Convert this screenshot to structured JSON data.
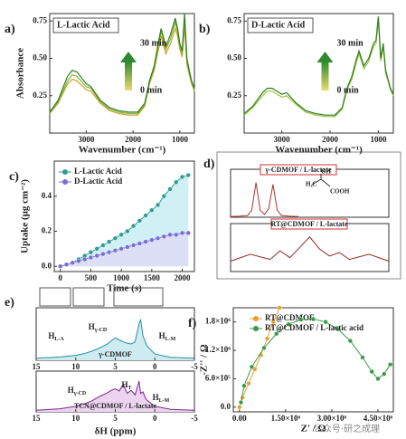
{
  "chart_data": [
    {
      "type": "line",
      "panel": "a)",
      "title": "L-Lactic Acid",
      "xlabel": "Wavenumber (cm⁻¹)",
      "ylabel": "Absorbance",
      "xlim": [
        3780,
        690
      ],
      "ylim": [
        0,
        0.8
      ],
      "xticks": [
        3000,
        2000,
        1000
      ],
      "yticks": [
        0.25,
        {
          "value": 0.5,
          "label": "0.50"
        },
        0.75
      ],
      "annotations": [
        "30 min",
        "0 min"
      ],
      "x": [
        3780,
        3600,
        3400,
        3300,
        3200,
        3000,
        2900,
        2700,
        2500,
        2300,
        2100,
        1900,
        1750,
        1650,
        1550,
        1450,
        1400,
        1300,
        1200,
        1100,
        1050,
        1000,
        950,
        900,
        850,
        800,
        750,
        690
      ],
      "series": [
        {
          "color": "#c9a227",
          "values": [
            0.13,
            0.2,
            0.33,
            0.36,
            0.35,
            0.29,
            0.28,
            0.2,
            0.15,
            0.13,
            0.12,
            0.12,
            0.18,
            0.33,
            0.42,
            0.57,
            0.65,
            0.53,
            0.6,
            0.7,
            0.65,
            0.56,
            0.51,
            0.72,
            0.46,
            0.39,
            0.33,
            0.28
          ]
        },
        {
          "color": "#8db33a",
          "values": [
            0.14,
            0.21,
            0.35,
            0.39,
            0.38,
            0.31,
            0.3,
            0.21,
            0.16,
            0.14,
            0.13,
            0.13,
            0.19,
            0.34,
            0.44,
            0.6,
            0.68,
            0.56,
            0.63,
            0.74,
            0.68,
            0.58,
            0.53,
            0.76,
            0.48,
            0.4,
            0.34,
            0.29
          ]
        },
        {
          "color": "#2e7d1f",
          "values": [
            0.14,
            0.22,
            0.38,
            0.42,
            0.41,
            0.33,
            0.31,
            0.22,
            0.17,
            0.15,
            0.14,
            0.14,
            0.2,
            0.35,
            0.45,
            0.62,
            0.7,
            0.58,
            0.66,
            0.77,
            0.7,
            0.6,
            0.55,
            0.8,
            0.5,
            0.42,
            0.35,
            0.3
          ]
        }
      ]
    },
    {
      "type": "line",
      "panel": "b)",
      "title": "D-Lactic Acid",
      "xlabel": "Wavenumber (cm⁻¹)",
      "xlim": [
        3780,
        690
      ],
      "ylim": [
        0,
        0.8
      ],
      "xticks": [
        3000,
        2000,
        1000
      ],
      "yticks": [
        0.25,
        {
          "value": 0.5,
          "label": "0.50"
        },
        0.75
      ],
      "annotations": [
        "30 min",
        "0 min"
      ],
      "x": [
        3780,
        3600,
        3400,
        3300,
        3200,
        3000,
        2900,
        2700,
        2500,
        2300,
        2100,
        1900,
        1750,
        1650,
        1550,
        1450,
        1400,
        1300,
        1200,
        1100,
        1050,
        1000,
        950,
        900,
        850,
        800,
        750,
        690
      ],
      "series": [
        {
          "color": "#9cc23c",
          "values": [
            0.12,
            0.17,
            0.25,
            0.28,
            0.28,
            0.24,
            0.25,
            0.19,
            0.14,
            0.12,
            0.11,
            0.11,
            0.16,
            0.29,
            0.36,
            0.48,
            0.53,
            0.43,
            0.48,
            0.58,
            0.6,
            0.75,
            0.48,
            0.58,
            0.4,
            0.35,
            0.29,
            0.25
          ]
        },
        {
          "color": "#2e7d1f",
          "values": [
            0.13,
            0.18,
            0.27,
            0.3,
            0.3,
            0.26,
            0.27,
            0.2,
            0.15,
            0.13,
            0.12,
            0.12,
            0.17,
            0.3,
            0.38,
            0.5,
            0.55,
            0.45,
            0.5,
            0.6,
            0.62,
            0.78,
            0.5,
            0.6,
            0.42,
            0.36,
            0.3,
            0.26
          ]
        }
      ]
    },
    {
      "type": "line",
      "panel": "c)",
      "markers": true,
      "xlabel": "Time (s)",
      "ylabel": "Uptake (μg cm⁻²)",
      "legend": "upper left",
      "xlim": [
        -100,
        2200
      ],
      "ylim": [
        -0.03,
        0.6
      ],
      "xticks": [
        0,
        500,
        1000,
        1500,
        2000
      ],
      "yticks": [
        {
          "value": 0,
          "label": "0.0"
        },
        0.2,
        0.4
      ],
      "x": [
        0,
        100,
        200,
        300,
        400,
        500,
        600,
        700,
        800,
        900,
        1000,
        1100,
        1200,
        1300,
        1400,
        1500,
        1600,
        1700,
        1800,
        1900,
        2000,
        2100
      ],
      "series": [
        {
          "name": "L-Lactic Acid",
          "color": "#2f9c8f",
          "fill": "#c4ecf2",
          "values": [
            0,
            0.01,
            0.02,
            0.04,
            0.06,
            0.08,
            0.1,
            0.12,
            0.14,
            0.16,
            0.18,
            0.2,
            0.23,
            0.26,
            0.29,
            0.32,
            0.35,
            0.4,
            0.44,
            0.48,
            0.51,
            0.52
          ]
        },
        {
          "name": "D-Lactic Acid",
          "color": "#7b6bd6",
          "fill": "#e0dbf7",
          "values": [
            0,
            0.01,
            0.02,
            0.03,
            0.04,
            0.05,
            0.06,
            0.07,
            0.08,
            0.09,
            0.1,
            0.11,
            0.12,
            0.13,
            0.14,
            0.15,
            0.16,
            0.17,
            0.18,
            0.18,
            0.19,
            0.19
          ]
        }
      ]
    },
    {
      "type": "nmr",
      "panel": "d)",
      "annotations": [
        "OH",
        "COOH",
        "H₃C"
      ],
      "subplots": [
        {
          "title": "γ-CDMOF / L-lactate",
          "color": "#b03030",
          "x": [
            1.36,
            1.35,
            1.34,
            1.335,
            1.33,
            1.325,
            1.32,
            1.315,
            1.31,
            1.305,
            1.3,
            1.29,
            1.28
          ],
          "values": [
            0.02,
            0.03,
            0.05,
            0.2,
            1.0,
            0.2,
            0.08,
            0.25,
            0.95,
            0.2,
            0.05,
            0.03,
            0.02
          ]
        },
        {
          "title": "RT@CDMOF / L-lactate",
          "color": "#8a2a2a",
          "x": [
            1.36,
            1.35,
            1.34,
            1.335,
            1.33,
            1.325,
            1.32,
            1.315,
            1.31,
            1.305,
            1.3,
            1.29,
            1.28
          ],
          "values": [
            0.3,
            0.5,
            0.35,
            0.6,
            0.4,
            0.7,
            1.0,
            0.65,
            0.45,
            0.55,
            0.35,
            0.5,
            0.3
          ]
        }
      ]
    },
    {
      "type": "stacked-spectra",
      "panel": "e)",
      "xlabel": "δH (ppm)",
      "xlim": [
        15,
        -5
      ],
      "xticks": [
        15,
        10,
        5,
        0,
        -5
      ],
      "subplots": [
        {
          "title": "γ-CDMOF",
          "color": "#2a8fa0",
          "fill": "#cdebf0",
          "labels": [
            {
              "base": "H",
              "sub": "L-A"
            },
            {
              "base": "H",
              "sub": "γ-CD"
            },
            {
              "base": "H",
              "sub": "L-M"
            }
          ],
          "x": [
            15,
            12,
            10,
            9,
            8,
            7,
            6,
            5.5,
            5,
            4.5,
            4,
            3.5,
            3,
            2.5,
            2,
            1.8,
            1.5,
            1.2,
            1,
            0,
            -2,
            -5
          ],
          "values": [
            0.05,
            0.08,
            0.12,
            0.16,
            0.22,
            0.3,
            0.4,
            0.48,
            0.55,
            0.5,
            0.45,
            0.42,
            0.4,
            0.45,
            0.9,
            1.0,
            0.6,
            0.45,
            0.35,
            0.15,
            0.07,
            0.05
          ]
        },
        {
          "title": "TCN@CDMOF / L-lactate",
          "color": "#7a2a8a",
          "fill": "#ecd3f0",
          "labels": [
            {
              "base": "H",
              "sub": "γ-CD"
            },
            {
              "base": "H",
              "sub": "T"
            },
            {
              "base": "H",
              "sub": "L-M"
            }
          ],
          "x": [
            15,
            12,
            10,
            9,
            8,
            7,
            6,
            5.5,
            5,
            4.5,
            4,
            3.5,
            3,
            2.5,
            2,
            1.8,
            1.5,
            1.2,
            1,
            0,
            -2,
            -5
          ],
          "values": [
            0.05,
            0.1,
            0.18,
            0.25,
            0.35,
            0.5,
            0.62,
            0.7,
            0.75,
            0.68,
            0.9,
            0.6,
            0.7,
            0.55,
            1.0,
            0.6,
            0.65,
            0.45,
            0.38,
            0.18,
            0.08,
            0.05
          ]
        }
      ]
    },
    {
      "type": "line",
      "panel": "f)",
      "markers": true,
      "xlabel": "Z' / Ω",
      "ylabel": "-Z'' / Ω",
      "legend": "upper center",
      "xlim": [
        -200000,
        5000000
      ],
      "ylim": [
        -100000,
        2100000
      ],
      "xticks": [
        {
          "value": 0,
          "label": "0.00"
        },
        {
          "value": 1500000,
          "label": "1.50×10⁶"
        },
        {
          "value": 3000000,
          "label": "3.00×10⁶"
        },
        {
          "value": 4500000,
          "label": "4.50×10⁶"
        }
      ],
      "yticks": [
        {
          "value": 0,
          "label": "0.0"
        },
        {
          "value": 600000,
          "label": "6.0×10⁵"
        },
        {
          "value": 1200000,
          "label": "1.2×10⁶"
        },
        {
          "value": 1800000,
          "label": "1.8×10⁶"
        }
      ],
      "series": [
        {
          "name": "RT@CDMOF",
          "color": "#e8a030",
          "x": [
            0,
            100000,
            300000,
            500000,
            700000,
            900000,
            1100000,
            1300000
          ],
          "values": [
            0,
            200000,
            500000,
            800000,
            1100000,
            1450000,
            1800000,
            2100000
          ]
        },
        {
          "name": "RT@CDMOF / L-lactic acid",
          "color": "#3a9a4a",
          "x": [
            50000,
            150000,
            400000,
            800000,
            1200000,
            1600000,
            2000000,
            2400000,
            2800000,
            3200000,
            3600000,
            4000000,
            4300000,
            4500000,
            4700000,
            4900000
          ],
          "values": [
            100000,
            450000,
            850000,
            1250000,
            1550000,
            1750000,
            1850000,
            1860000,
            1800000,
            1650000,
            1400000,
            1050000,
            750000,
            600000,
            700000,
            900000
          ]
        }
      ]
    }
  ],
  "watermark": "公众号·研之成理"
}
